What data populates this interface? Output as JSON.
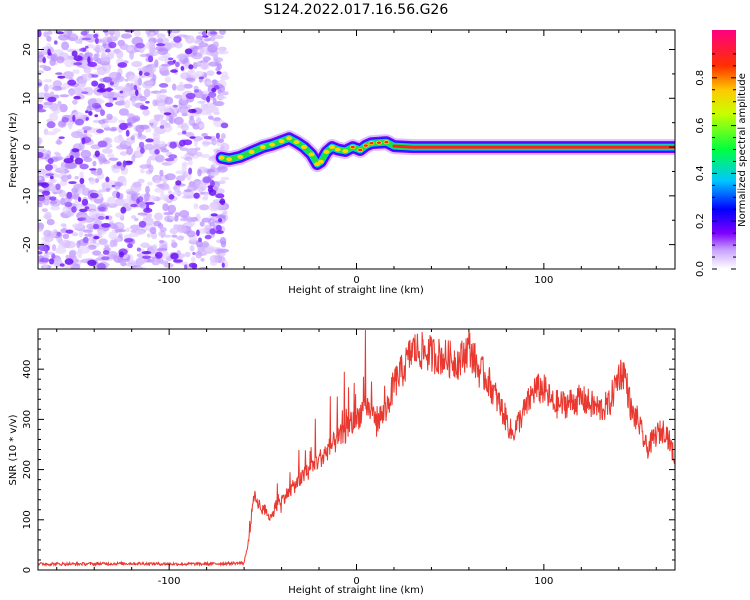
{
  "title": "S124.2022.017.16.56.G26",
  "chart_data": [
    {
      "type": "heatmap",
      "title": "",
      "xlabel": "Height of straight line (km)",
      "ylabel": "Frequency (Hz)",
      "xlim": [
        -170,
        170
      ],
      "ylim": [
        -25,
        24
      ],
      "xticks": [
        -100,
        0,
        100
      ],
      "yticks": [
        -20,
        -10,
        0,
        10,
        20
      ],
      "colorbar": {
        "label": "Normalized spectral amplitude",
        "range": [
          0,
          1
        ],
        "ticks": [
          0.0,
          0.2,
          0.4,
          0.6,
          0.8
        ],
        "colormap": [
          "#ffffff",
          "#7f00ff",
          "#0000ff",
          "#00c8ff",
          "#00ff00",
          "#ffff00",
          "#ff0000",
          "#ff0080"
        ]
      },
      "noise_region_x": [
        -170,
        -70
      ],
      "ridge": {
        "x": [
          -72,
          -68,
          -62,
          -56,
          -50,
          -45,
          -40,
          -36,
          -32,
          -28,
          -24,
          -21,
          -19,
          -16,
          -13,
          -10,
          -6,
          -2,
          2,
          5,
          8,
          12,
          16,
          20,
          30,
          60,
          100,
          130,
          170
        ],
        "y": [
          -2.2,
          -2.5,
          -2.0,
          -1.0,
          0.0,
          0.5,
          1.2,
          1.8,
          1.0,
          0.0,
          -1.5,
          -3.5,
          -3.0,
          -1.0,
          0.0,
          -0.5,
          -0.8,
          0.0,
          -0.6,
          0.3,
          0.8,
          0.9,
          1.0,
          0.2,
          0.0,
          0.0,
          0.0,
          0.0,
          0.0
        ]
      }
    },
    {
      "type": "line",
      "title": "",
      "xlabel": "Height of straight line (km)",
      "ylabel": "SNR (10 * v/v)",
      "xlim": [
        -170,
        170
      ],
      "ylim": [
        0,
        480
      ],
      "xticks": [
        -100,
        0,
        100
      ],
      "yticks": [
        0,
        100,
        200,
        300,
        400
      ],
      "color": "#e8382f",
      "series": [
        {
          "x": [
            -170,
            -150,
            -120,
            -100,
            -80,
            -60,
            -57,
            -55,
            -50,
            -45,
            -40,
            -30,
            -20,
            -10,
            0,
            5,
            10,
            15,
            20,
            25,
            30,
            40,
            50,
            55,
            60,
            65,
            70,
            75,
            80,
            83,
            90,
            95,
            100,
            105,
            110,
            120,
            130,
            135,
            140,
            143,
            147,
            150,
            155,
            160,
            165,
            170
          ],
          "y": [
            12,
            12,
            13,
            12,
            12,
            14,
            70,
            150,
            120,
            110,
            140,
            180,
            220,
            260,
            300,
            330,
            300,
            310,
            370,
            400,
            440,
            430,
            420,
            415,
            445,
            400,
            380,
            340,
            300,
            270,
            320,
            360,
            360,
            330,
            330,
            340,
            320,
            330,
            390,
            395,
            310,
            300,
            240,
            270,
            280,
            220
          ]
        }
      ]
    }
  ]
}
